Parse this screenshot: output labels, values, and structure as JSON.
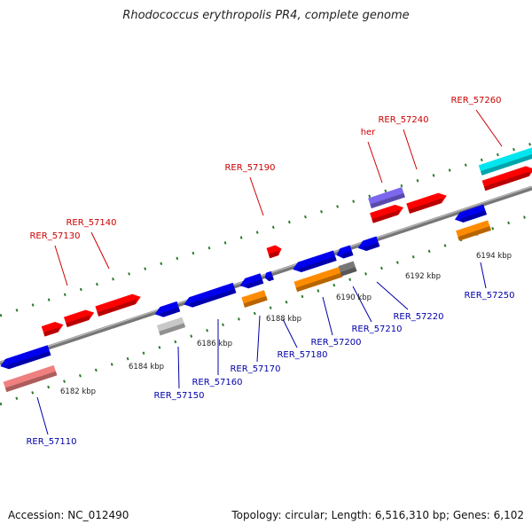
{
  "title": "Rhodococcus erythropolis PR4, complete genome",
  "footer": {
    "accession": "Accession: NC_012490",
    "summary": "Topology: circular; Length: 6,516,310 bp; Genes: 6,102"
  },
  "colors": {
    "backbone": "#888888",
    "tick": "#2a7a2a",
    "red": "#ff0000",
    "blue": "#0000ee",
    "orange": "#ff8c00",
    "gray": "#777777",
    "silver": "#c8c8c8",
    "pink": "#f08080",
    "purple": "#7b68ee",
    "cyan": "#00e5ee",
    "label_red": "#cc0000",
    "label_blue": "#0000aa"
  },
  "kbp_labels": [
    "6182 kbp",
    "6184 kbp",
    "6186 kbp",
    "6188 kbp",
    "6190 kbp",
    "6192 kbp",
    "6194 kbp"
  ],
  "genes_forward": [
    {
      "label": "RER_57130",
      "color": "red"
    },
    {
      "label": "RER_57140",
      "color": "red"
    },
    {
      "label": "RER_57190",
      "color": "red"
    },
    {
      "label": "her",
      "color": "purple"
    },
    {
      "label": "RER_57240",
      "color": "red"
    },
    {
      "label": "RER_57260",
      "color": "cyan"
    }
  ],
  "genes_reverse": [
    {
      "label": "RER_57110",
      "color": "pink"
    },
    {
      "label": "RER_57150",
      "color": "silver"
    },
    {
      "label": "RER_57160",
      "color": "blue"
    },
    {
      "label": "RER_57170",
      "color": "orange"
    },
    {
      "label": "RER_57180",
      "color": "blue"
    },
    {
      "label": "RER_57200",
      "color": "orange"
    },
    {
      "label": "RER_57210",
      "color": "gray"
    },
    {
      "label": "RER_57220",
      "color": "blue"
    },
    {
      "label": "RER_57250",
      "color": "orange"
    }
  ]
}
